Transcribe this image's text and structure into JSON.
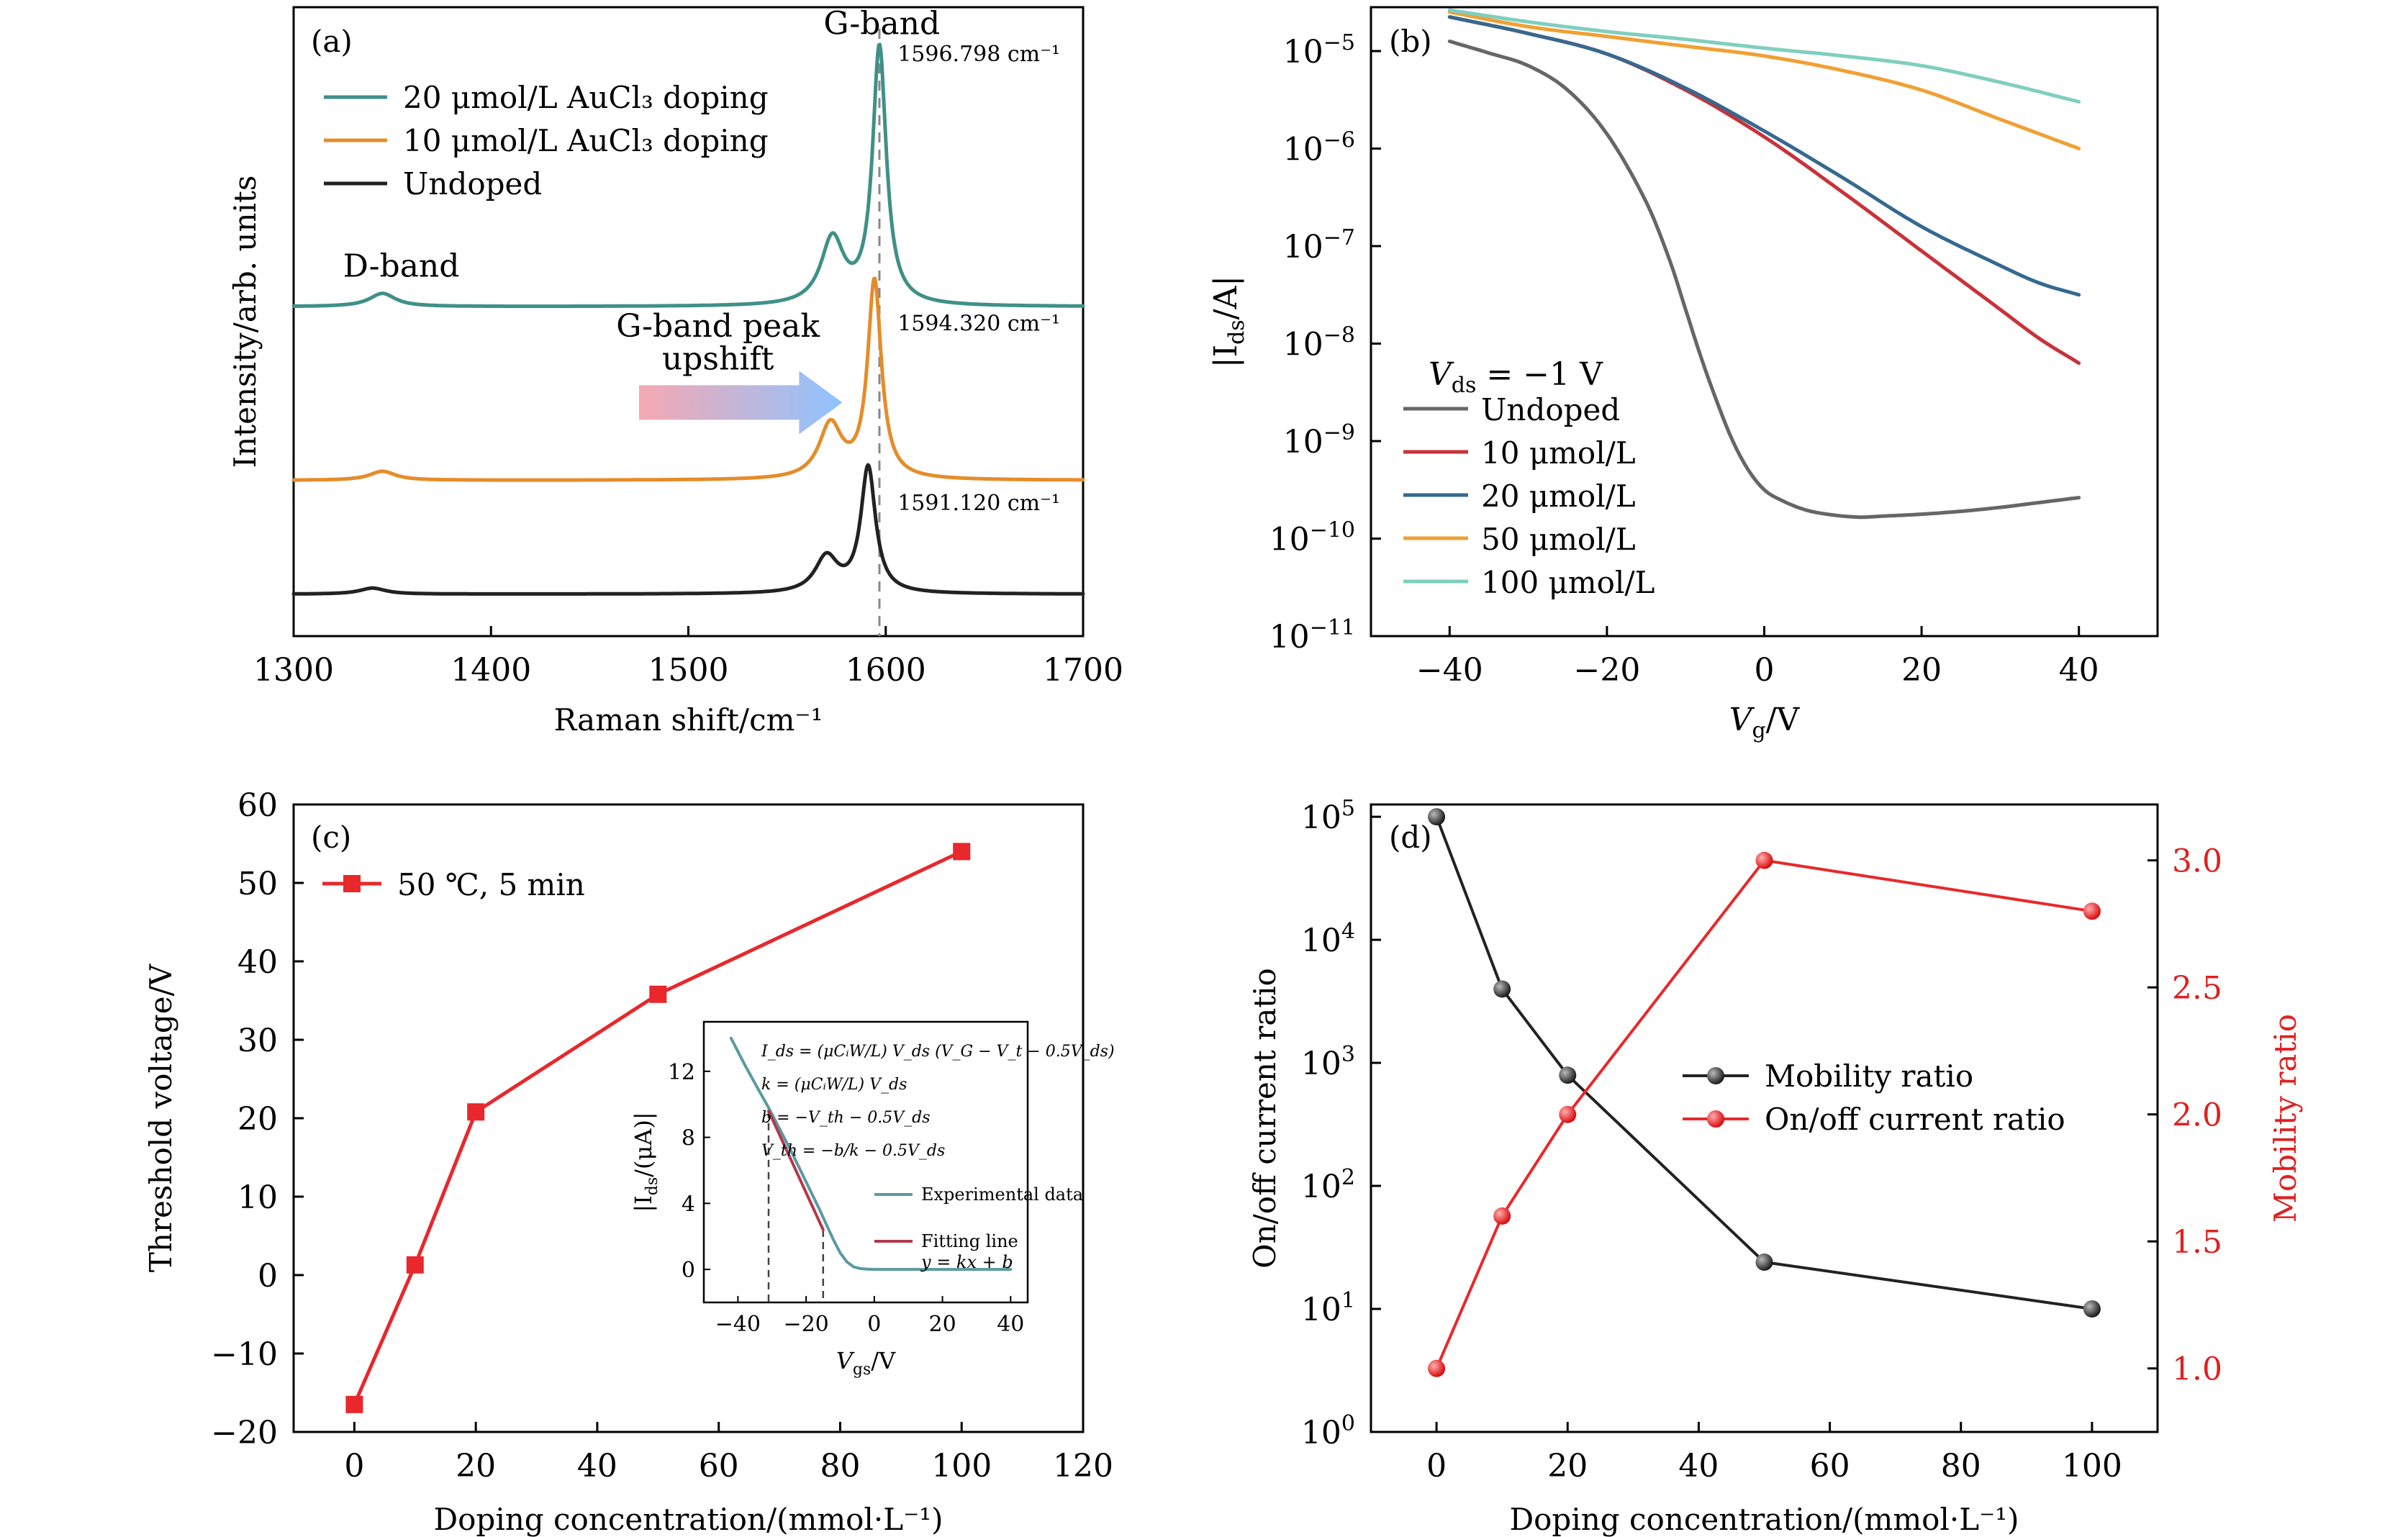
{
  "colors": {
    "axis": "#000000",
    "teal": "#3f9088",
    "orange": "#e58c2a",
    "black": "#222222",
    "gray": "#666666",
    "red": "#c8323a",
    "blue": "#35698f",
    "amber": "#f0a033",
    "mint": "#7fcfbe",
    "dash": "#888888",
    "marker_red": "#e8282c",
    "right_axis_red": "#e02020",
    "inset_teal": "#5b9aa0",
    "inset_red": "#b3384a"
  },
  "chart_data": [
    {
      "id": "a",
      "type": "line",
      "panel_label": "(a)",
      "xlabel": "Raman shift/cm⁻¹",
      "ylabel": "Intensity/arb. units",
      "xlim": [
        1300,
        1700
      ],
      "xticks": [
        1300,
        1400,
        1500,
        1600,
        1700
      ],
      "xtick_labels": [
        "1300",
        "1400",
        "1500",
        "1600",
        "1700"
      ],
      "ylim": [
        0,
        10.5
      ],
      "yticks_shown": false,
      "legend_position": "top-left",
      "series": [
        {
          "name": "20 μmol/L AuCl₃ doping",
          "color_key": "teal",
          "baseline": 5.5,
          "peaks": [
            [
              1345,
              0.22,
              8
            ],
            [
              1573,
              1.1,
              7
            ],
            [
              1596.8,
              4.3,
              4.2
            ]
          ]
        },
        {
          "name": "10 μmol/L AuCl₃ doping",
          "color_key": "orange",
          "baseline": 2.6,
          "peaks": [
            [
              1345,
              0.15,
              8
            ],
            [
              1572,
              0.9,
              7
            ],
            [
              1594.3,
              3.3,
              4.2
            ]
          ]
        },
        {
          "name": "Undoped",
          "color_key": "black",
          "baseline": 0.7,
          "peaks": [
            [
              1340,
              0.1,
              8
            ],
            [
              1570,
              0.6,
              7
            ],
            [
              1591.1,
              2.1,
              4.5
            ]
          ]
        }
      ],
      "annotations": [
        {
          "text": "G-band",
          "x": 1598,
          "y": 10.05
        },
        {
          "text": "1596.798 cm⁻¹",
          "x": 1606,
          "y": 9.6
        },
        {
          "text": "1594.320 cm⁻¹",
          "x": 1606,
          "y": 5.1
        },
        {
          "text": "1591.120 cm⁻¹",
          "x": 1606,
          "y": 2.1
        },
        {
          "text": "D-band",
          "x": 1325,
          "y": 6.0
        },
        {
          "text": "G-band peak",
          "x": 1515,
          "y": 5.0
        },
        {
          "text": "upshift",
          "x": 1515,
          "y": 4.45
        }
      ],
      "reference_line_x": 1596.8,
      "arrow": {
        "x_start": 1475,
        "x_end": 1578,
        "y": 3.9
      }
    },
    {
      "id": "b",
      "type": "line",
      "panel_label": "(b)",
      "xlabel": "Vᵍ/V",
      "xlabel_main": "V",
      "xlabel_sub": "g",
      "xlabel_tail": "/V",
      "ylabel_main": "|I",
      "ylabel_sub": "ds",
      "ylabel_tail": "/A|",
      "yscale": "log",
      "xlim": [
        -50,
        50
      ],
      "ylim_exp": [
        -11,
        -4.55
      ],
      "xticks": [
        -40,
        -20,
        0,
        20,
        40
      ],
      "xtick_labels": [
        "−40",
        "−20",
        "0",
        "20",
        "40"
      ],
      "ytick_exps": [
        -5,
        -6,
        -7,
        -8,
        -9,
        -10,
        -11
      ],
      "ytick_labels": [
        "−5",
        "−6",
        "−7",
        "−8",
        "−9",
        "−10",
        "−11"
      ],
      "ytick_base": "10",
      "legend_title_main": "V",
      "legend_title_sub": "ds",
      "legend_title_tail": " = −1 V",
      "legend_position": "bottom-left",
      "series": [
        {
          "name": "Undoped",
          "color_key": "gray",
          "x": [
            -40,
            -35,
            -30,
            -25,
            -20,
            -15,
            -12,
            -10,
            -8,
            -6,
            -4,
            -2,
            0,
            2,
            5,
            8,
            12,
            15,
            20,
            25,
            30,
            35,
            40
          ],
          "y_log10": [
            -4.9,
            -5.02,
            -5.15,
            -5.4,
            -5.85,
            -6.55,
            -7.15,
            -7.65,
            -8.15,
            -8.6,
            -9.0,
            -9.3,
            -9.5,
            -9.6,
            -9.7,
            -9.75,
            -9.78,
            -9.77,
            -9.75,
            -9.72,
            -9.68,
            -9.63,
            -9.58
          ]
        },
        {
          "name": "10 μmol/L",
          "color_key": "red",
          "x": [
            -40,
            -30,
            -20,
            -10,
            0,
            10,
            20,
            30,
            35,
            40
          ],
          "y_log10": [
            -4.65,
            -4.82,
            -5.03,
            -5.4,
            -5.88,
            -6.45,
            -7.05,
            -7.65,
            -7.95,
            -8.2
          ]
        },
        {
          "name": "20 μmol/L",
          "color_key": "blue",
          "x": [
            -40,
            -30,
            -20,
            -10,
            0,
            10,
            20,
            30,
            35,
            40
          ],
          "y_log10": [
            -4.65,
            -4.82,
            -5.03,
            -5.38,
            -5.82,
            -6.3,
            -6.8,
            -7.2,
            -7.38,
            -7.5
          ]
        },
        {
          "name": "50 μmol/L",
          "color_key": "amber",
          "x": [
            -40,
            -30,
            -20,
            -10,
            0,
            10,
            20,
            30,
            40
          ],
          "y_log10": [
            -4.6,
            -4.75,
            -4.85,
            -4.95,
            -5.05,
            -5.2,
            -5.4,
            -5.7,
            -6.0
          ]
        },
        {
          "name": "100 μmol/L",
          "color_key": "mint",
          "x": [
            -40,
            -30,
            -20,
            -10,
            0,
            10,
            20,
            30,
            40
          ],
          "y_log10": [
            -4.58,
            -4.7,
            -4.8,
            -4.88,
            -4.97,
            -5.05,
            -5.15,
            -5.32,
            -5.52
          ]
        }
      ]
    },
    {
      "id": "c",
      "type": "line",
      "panel_label": "(c)",
      "xlabel": "Doping concentration/(mmol·L⁻¹)",
      "ylabel": "Threshold voltage/V",
      "xlim": [
        -10,
        120
      ],
      "ylim": [
        -20,
        60
      ],
      "xticks": [
        0,
        20,
        40,
        60,
        80,
        100,
        120
      ],
      "xtick_labels": [
        "0",
        "20",
        "40",
        "60",
        "80",
        "100",
        "120"
      ],
      "yticks": [
        -20,
        -10,
        0,
        10,
        20,
        30,
        40,
        50,
        60
      ],
      "ytick_labels": [
        "−20",
        "−10",
        "0",
        "10",
        "20",
        "30",
        "40",
        "50",
        "60"
      ],
      "legend_position": "top-left",
      "series": [
        {
          "name": "50 ℃, 5 min",
          "color_key": "marker_red",
          "x": [
            0,
            10,
            20,
            50,
            100
          ],
          "y": [
            -16.5,
            1.3,
            20.8,
            35.8,
            54.0
          ]
        }
      ],
      "inset": {
        "type": "line",
        "xlabel_main": "V",
        "xlabel_sub": "gs",
        "xlabel_tail": "/V",
        "ylabel_main": "|I",
        "ylabel_sub": "ds",
        "ylabel_tail": "/(μA)|",
        "xlim": [
          -50,
          45
        ],
        "ylim": [
          -2,
          15
        ],
        "xticks": [
          -40,
          -20,
          0,
          20,
          40
        ],
        "xtick_labels": [
          "−40",
          "−20",
          "0",
          "20",
          "40"
        ],
        "yticks": [
          0,
          4,
          8,
          12
        ],
        "ytick_labels": [
          "0",
          "4",
          "8",
          "12"
        ],
        "equations": [
          "I_ds = (μCᵢW/L) V_ds (V_G − V_t − 0.5V_ds)",
          "k = (μCᵢW/L) V_ds",
          "b = −V_th − 0.5V_ds",
          "V_th = −b/k − 0.5V_ds"
        ],
        "dashed_x": [
          -31,
          -15
        ],
        "series": [
          {
            "name": "Experimental data",
            "color_key": "inset_teal",
            "x": [
              -42,
              -38,
              -34,
              -31,
              -28,
              -24,
              -20,
              -16,
              -14,
              -12,
              -10,
              -8,
              -6,
              -4,
              -2,
              0,
              5,
              10,
              20,
              30,
              40
            ],
            "y": [
              14.0,
              12.4,
              10.9,
              9.8,
              8.6,
              7.0,
              5.3,
              3.6,
              2.7,
              1.8,
              1.0,
              0.45,
              0.15,
              0.05,
              0.02,
              0.0,
              0.0,
              0.0,
              0.0,
              0.0,
              0.0
            ]
          },
          {
            "name": "Fitting line",
            "sub": "y = kx + b",
            "color_key": "inset_red",
            "x": [
              -31,
              -15
            ],
            "y": [
              9.6,
              2.4
            ]
          }
        ]
      }
    },
    {
      "id": "d",
      "type": "line",
      "panel_label": "(d)",
      "xlabel": "Doping concentration/(mmol·L⁻¹)",
      "ylabel_left": "On/off current ratio",
      "ylabel_right": "Mobility ratio",
      "yscale_left": "log",
      "xlim": [
        -10,
        110
      ],
      "xticks": [
        0,
        20,
        40,
        60,
        80,
        100
      ],
      "xtick_labels": [
        "0",
        "20",
        "40",
        "60",
        "80",
        "100"
      ],
      "ylim_left_exp": [
        0,
        5.1
      ],
      "ytick_left_exps": [
        0,
        1,
        2,
        3,
        4,
        5
      ],
      "ytick_left_labels": [
        "0",
        "1",
        "2",
        "3",
        "4",
        "5"
      ],
      "ytick_base": "10",
      "ylim_right": [
        0.75,
        3.22
      ],
      "yticks_right": [
        1.0,
        1.5,
        2.0,
        2.5,
        3.0
      ],
      "ytick_right_labels": [
        "1.0",
        "1.5",
        "2.0",
        "2.5",
        "3.0"
      ],
      "legend_position": "center-right",
      "series": [
        {
          "name": "Mobility ratio",
          "color_key": "black",
          "axis": "left",
          "x": [
            0,
            10,
            20,
            50,
            100
          ],
          "y_log10": [
            5.0,
            3.6,
            2.9,
            1.38,
            1.0
          ]
        },
        {
          "name": "On/off current ratio",
          "color_key": "marker_red",
          "axis": "right",
          "x": [
            0,
            10,
            20,
            50,
            100
          ],
          "y": [
            1.0,
            1.6,
            2.0,
            3.0,
            2.8
          ]
        }
      ]
    }
  ]
}
